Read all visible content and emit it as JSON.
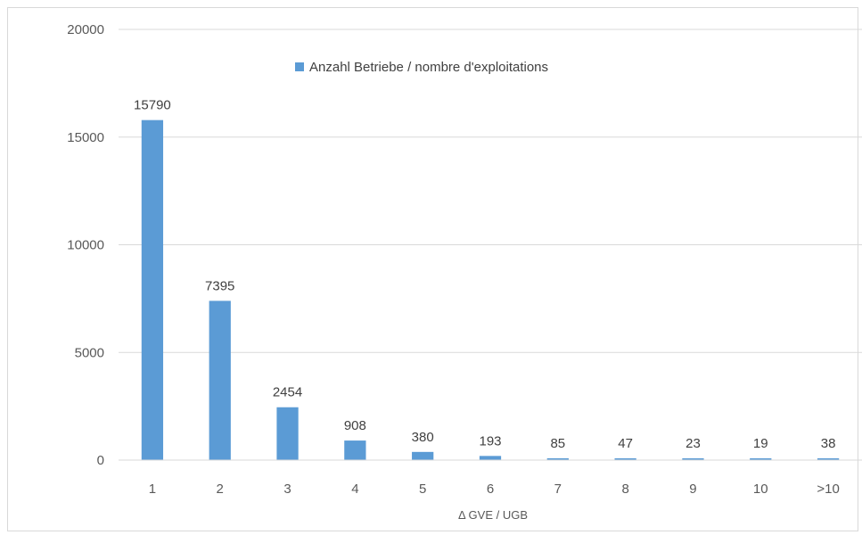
{
  "chart_data": {
    "type": "bar",
    "title": "",
    "xlabel": "Δ GVE / UGB",
    "ylabel": "",
    "categories": [
      "1",
      "2",
      "3",
      "4",
      "5",
      "6",
      "7",
      "8",
      "9",
      "10",
      ">10"
    ],
    "series": [
      {
        "name": "Anzahl Betriebe / nombre d'exploitations",
        "values": [
          15790,
          7395,
          2454,
          908,
          380,
          193,
          85,
          47,
          23,
          19,
          38
        ],
        "color": "#5b9bd5"
      }
    ],
    "ylim": [
      0,
      20000
    ],
    "yticks": [
      0,
      5000,
      10000,
      15000,
      20000
    ],
    "grid": true,
    "legend_position": "top-center",
    "data_labels": true
  }
}
